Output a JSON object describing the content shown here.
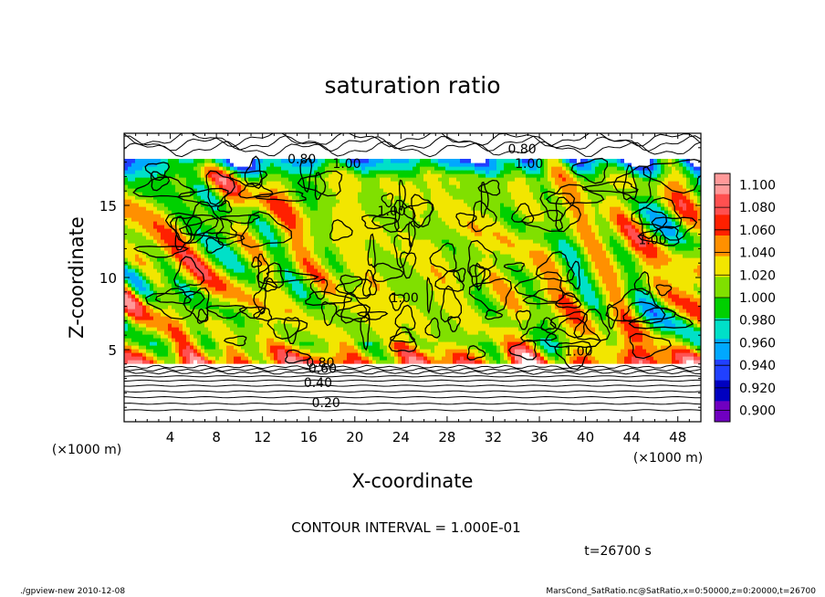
{
  "chart_data": {
    "type": "heatmap",
    "title": "saturation ratio",
    "xlabel": "X-coordinate",
    "ylabel": "Z-coordinate",
    "x_unit_left": "(×1000 m)",
    "x_unit_right": "(×1000 m)",
    "xlim": [
      0,
      50
    ],
    "ylim": [
      0,
      20
    ],
    "xticks": [
      4,
      8,
      12,
      16,
      20,
      24,
      28,
      32,
      36,
      40,
      44,
      48
    ],
    "yticks": [
      5,
      10,
      15
    ],
    "colorbar": {
      "levels": [
        "1.100",
        "1.080",
        "1.060",
        "1.040",
        "1.020",
        "1.000",
        "0.980",
        "0.960",
        "0.940",
        "0.920",
        "0.900"
      ],
      "colors": [
        "#ff9999",
        "#ff5050",
        "#ff2000",
        "#ff9000",
        "#f2e600",
        "#80e000",
        "#00d000",
        "#00e0c8",
        "#00a8ff",
        "#2040ff",
        "#0000c0",
        "#7000c0"
      ]
    },
    "contour_labels": [
      {
        "text": "0.80",
        "x": 34.5,
        "y": 18.6
      },
      {
        "text": "0.80",
        "x": 15.4,
        "y": 17.9
      },
      {
        "text": "1.00",
        "x": 19.3,
        "y": 17.6
      },
      {
        "text": "1.00",
        "x": 35.1,
        "y": 17.6
      },
      {
        "text": "1.00",
        "x": 23.2,
        "y": 14.3
      },
      {
        "text": "1.00",
        "x": 45.8,
        "y": 12.3
      },
      {
        "text": "1.00",
        "x": 24.3,
        "y": 8.3
      },
      {
        "text": "1.00",
        "x": 39.4,
        "y": 4.6
      },
      {
        "text": "0.80",
        "x": 17.0,
        "y": 3.8
      },
      {
        "text": "0.60",
        "x": 17.2,
        "y": 3.4
      },
      {
        "text": "0.40",
        "x": 16.8,
        "y": 2.4
      },
      {
        "text": "0.20",
        "x": 17.5,
        "y": 1.0
      }
    ],
    "contour_interval": "CONTOUR INTERVAL = 1.000E-01",
    "time": "t=26700 s"
  },
  "footer": {
    "left": "./gpview-new  2010-12-08",
    "right": "MarsCond_SatRatio.nc@SatRatio,x=0:50000,z=0:20000,t=26700"
  }
}
